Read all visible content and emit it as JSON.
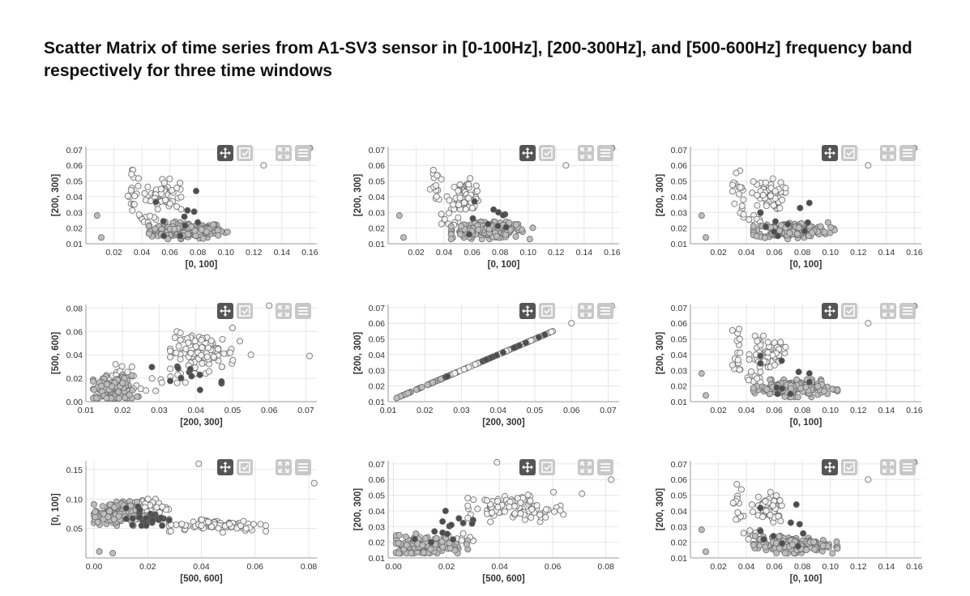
{
  "page": {
    "title": "Scatter Matrix of time series from A1-SV3 sensor in [0-100Hz], [200-300Hz], and [500-600Hz] frequency band respectively for three time windows"
  },
  "toolbar_icons": [
    "move-icon",
    "select-icon",
    "zoom-icon",
    "menu-icon"
  ],
  "colors": {
    "light": "#f2f2f2",
    "mid": "#bdbdbd",
    "dark": "#4d4d4d",
    "grid": "#e6e6e6",
    "tool_active": "#555555",
    "tool_inactive": "#c8c8c8"
  },
  "chart_data": [
    {
      "type": "scatter",
      "xlabel": "[0, 100]",
      "ylabel": "[200, 300]",
      "xlim": [
        0.0,
        0.165
      ],
      "ylim": [
        0.01,
        0.072
      ],
      "xticks": [
        "0.02",
        "0.04",
        "0.06",
        "0.08",
        "0.10",
        "0.12",
        "0.14",
        "0.16"
      ],
      "xtick_values": [
        0.02,
        0.04,
        0.06,
        0.08,
        0.1,
        0.12,
        0.14,
        0.16
      ],
      "yticks": [
        "0.01",
        "0.02",
        "0.03",
        "0.04",
        "0.05",
        "0.06",
        "0.07"
      ],
      "ytick_values": [
        0.01,
        0.02,
        0.03,
        0.04,
        0.05,
        0.06,
        0.07
      ],
      "gen": "A",
      "series": [
        {
          "color": "mid",
          "x": [
            0.008,
            0.011,
            0.16
          ],
          "y": [
            0.028,
            0.014,
            0.071
          ]
        },
        {
          "color": "light",
          "x": [
            0.127
          ],
          "y": [
            0.06
          ]
        }
      ]
    },
    {
      "type": "scatter",
      "xlabel": "[0, 100]",
      "ylabel": "[200, 300]",
      "xlim": [
        0.0,
        0.165
      ],
      "ylim": [
        0.01,
        0.072
      ],
      "xticks": [
        "0.02",
        "0.04",
        "0.06",
        "0.08",
        "0.10",
        "0.12",
        "0.14",
        "0.16"
      ],
      "xtick_values": [
        0.02,
        0.04,
        0.06,
        0.08,
        0.1,
        0.12,
        0.14,
        0.16
      ],
      "yticks": [
        "0.01",
        "0.02",
        "0.03",
        "0.04",
        "0.05",
        "0.06",
        "0.07"
      ],
      "ytick_values": [
        0.01,
        0.02,
        0.03,
        0.04,
        0.05,
        0.06,
        0.07
      ],
      "gen": "A",
      "series": [
        {
          "color": "mid",
          "x": [
            0.008,
            0.011,
            0.16
          ],
          "y": [
            0.028,
            0.014,
            0.071
          ]
        },
        {
          "color": "light",
          "x": [
            0.127
          ],
          "y": [
            0.06
          ]
        }
      ]
    },
    {
      "type": "scatter",
      "xlabel": "[0, 100]",
      "ylabel": "[200, 300]",
      "xlim": [
        0.0,
        0.165
      ],
      "ylim": [
        0.01,
        0.072
      ],
      "xticks": [
        "0.02",
        "0.04",
        "0.06",
        "0.08",
        "0.10",
        "0.12",
        "0.14",
        "0.16"
      ],
      "xtick_values": [
        0.02,
        0.04,
        0.06,
        0.08,
        0.1,
        0.12,
        0.14,
        0.16
      ],
      "yticks": [
        "0.01",
        "0.02",
        "0.03",
        "0.04",
        "0.05",
        "0.06",
        "0.07"
      ],
      "ytick_values": [
        0.01,
        0.02,
        0.03,
        0.04,
        0.05,
        0.06,
        0.07
      ],
      "gen": "A",
      "series": [
        {
          "color": "mid",
          "x": [
            0.008,
            0.011,
            0.16
          ],
          "y": [
            0.028,
            0.014,
            0.071
          ]
        },
        {
          "color": "light",
          "x": [
            0.127
          ],
          "y": [
            0.06
          ]
        }
      ]
    },
    {
      "type": "scatter",
      "xlabel": "[200, 300]",
      "ylabel": "[500, 600]",
      "xlim": [
        0.01,
        0.073
      ],
      "ylim": [
        0.0,
        0.083
      ],
      "xticks": [
        "0.01",
        "0.02",
        "0.03",
        "0.04",
        "0.05",
        "0.06",
        "0.07"
      ],
      "xtick_values": [
        0.01,
        0.02,
        0.03,
        0.04,
        0.05,
        0.06,
        0.07
      ],
      "yticks": [
        "0.00",
        "0.02",
        "0.04",
        "0.06",
        "0.08"
      ],
      "ytick_values": [
        0.0,
        0.02,
        0.04,
        0.06,
        0.08
      ],
      "gen": "B",
      "series": [
        {
          "color": "light",
          "x": [
            0.06,
            0.071,
            0.055,
            0.05
          ],
          "y": [
            0.082,
            0.039,
            0.04,
            0.063
          ]
        },
        {
          "color": "mid",
          "x": [
            0.02
          ],
          "y": [
            0.016
          ]
        }
      ]
    },
    {
      "type": "scatter",
      "xlabel": "[200, 300]",
      "ylabel": "[200, 300]",
      "xlim": [
        0.01,
        0.073
      ],
      "ylim": [
        0.01,
        0.072
      ],
      "xticks": [
        "0.01",
        "0.02",
        "0.03",
        "0.04",
        "0.05",
        "0.06",
        "0.07"
      ],
      "xtick_values": [
        0.01,
        0.02,
        0.03,
        0.04,
        0.05,
        0.06,
        0.07
      ],
      "yticks": [
        "0.01",
        "0.02",
        "0.03",
        "0.04",
        "0.05",
        "0.06",
        "0.07"
      ],
      "ytick_values": [
        0.01,
        0.02,
        0.03,
        0.04,
        0.05,
        0.06,
        0.07
      ],
      "gen": "C",
      "series": [
        {
          "color": "light",
          "x": [
            0.06,
            0.071
          ],
          "y": [
            0.06,
            0.071
          ]
        }
      ]
    },
    {
      "type": "scatter",
      "xlabel": "[0, 100]",
      "ylabel": "[200, 300]",
      "xlim": [
        0.0,
        0.165
      ],
      "ylim": [
        0.01,
        0.072
      ],
      "xticks": [
        "0.02",
        "0.04",
        "0.06",
        "0.08",
        "0.10",
        "0.12",
        "0.14",
        "0.16"
      ],
      "xtick_values": [
        0.02,
        0.04,
        0.06,
        0.08,
        0.1,
        0.12,
        0.14,
        0.16
      ],
      "yticks": [
        "0.01",
        "0.02",
        "0.03",
        "0.04",
        "0.05",
        "0.06",
        "0.07"
      ],
      "ytick_values": [
        0.01,
        0.02,
        0.03,
        0.04,
        0.05,
        0.06,
        0.07
      ],
      "gen": "A",
      "series": [
        {
          "color": "mid",
          "x": [
            0.008,
            0.011,
            0.16
          ],
          "y": [
            0.028,
            0.014,
            0.071
          ]
        },
        {
          "color": "light",
          "x": [
            0.127
          ],
          "y": [
            0.06
          ]
        }
      ]
    },
    {
      "type": "scatter",
      "xlabel": "[500, 600]",
      "ylabel": "[0, 100]",
      "xlim": [
        -0.003,
        0.083
      ],
      "ylim": [
        0.0,
        0.165
      ],
      "xticks": [
        "0.00",
        "0.02",
        "0.04",
        "0.06",
        "0.08"
      ],
      "xtick_values": [
        0.0,
        0.02,
        0.04,
        0.06,
        0.08
      ],
      "yticks": [
        "0.05",
        "0.10",
        "0.15"
      ],
      "ytick_values": [
        0.05,
        0.1,
        0.15
      ],
      "gen": "D",
      "series": [
        {
          "color": "light",
          "x": [
            0.039,
            0.082
          ],
          "y": [
            0.16,
            0.127
          ]
        },
        {
          "color": "mid",
          "x": [
            0.002,
            0.007
          ],
          "y": [
            0.011,
            0.008
          ]
        }
      ]
    },
    {
      "type": "scatter",
      "xlabel": "[500, 600]",
      "ylabel": "[200, 300]",
      "xlim": [
        -0.002,
        0.085
      ],
      "ylim": [
        0.01,
        0.072
      ],
      "xticks": [
        "0.00",
        "0.02",
        "0.04",
        "0.06",
        "0.08"
      ],
      "xtick_values": [
        0.0,
        0.02,
        0.04,
        0.06,
        0.08
      ],
      "yticks": [
        "0.01",
        "0.02",
        "0.03",
        "0.04",
        "0.05",
        "0.06",
        "0.07"
      ],
      "ytick_values": [
        0.01,
        0.02,
        0.03,
        0.04,
        0.05,
        0.06,
        0.07
      ],
      "gen": "E",
      "series": [
        {
          "color": "light",
          "x": [
            0.039,
            0.082,
            0.071
          ],
          "y": [
            0.071,
            0.06,
            0.051
          ]
        },
        {
          "color": "mid",
          "x": [
            0.002
          ],
          "y": [
            0.013
          ]
        }
      ]
    },
    {
      "type": "scatter",
      "xlabel": "[0, 100]",
      "ylabel": "[200, 300]",
      "xlim": [
        0.0,
        0.165
      ],
      "ylim": [
        0.01,
        0.072
      ],
      "xticks": [
        "0.02",
        "0.04",
        "0.06",
        "0.08",
        "0.10",
        "0.12",
        "0.14",
        "0.16"
      ],
      "xtick_values": [
        0.02,
        0.04,
        0.06,
        0.08,
        0.1,
        0.12,
        0.14,
        0.16
      ],
      "yticks": [
        "0.01",
        "0.02",
        "0.03",
        "0.04",
        "0.05",
        "0.06",
        "0.07"
      ],
      "ytick_values": [
        0.01,
        0.02,
        0.03,
        0.04,
        0.05,
        0.06,
        0.07
      ],
      "gen": "A",
      "series": [
        {
          "color": "mid",
          "x": [
            0.008,
            0.011,
            0.16
          ],
          "y": [
            0.028,
            0.014,
            0.071
          ]
        },
        {
          "color": "light",
          "x": [
            0.127
          ],
          "y": [
            0.06
          ]
        }
      ]
    }
  ]
}
